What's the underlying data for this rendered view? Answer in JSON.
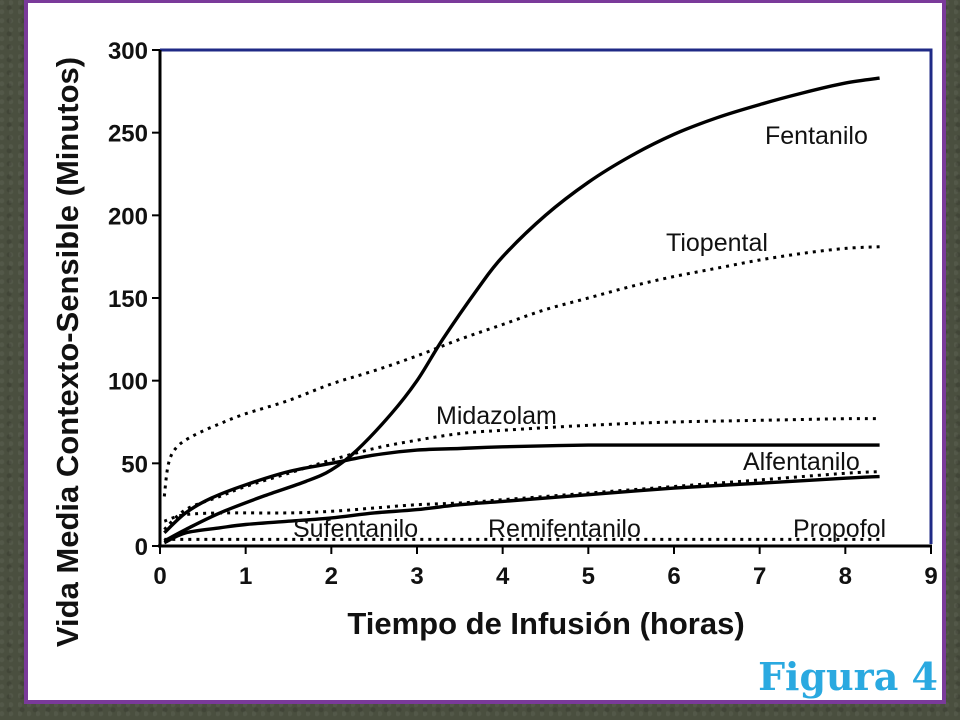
{
  "caption": "Figura 4",
  "chart_data": {
    "type": "line",
    "title": "",
    "xlabel": "Tiempo de Infusión (horas)",
    "ylabel": "Vida Media Contexto-Sensible (Minutos)",
    "xlim": [
      0,
      9
    ],
    "ylim": [
      0,
      300
    ],
    "xticks": [
      0,
      1,
      2,
      3,
      4,
      5,
      6,
      7,
      8,
      9
    ],
    "yticks": [
      0,
      50,
      100,
      150,
      200,
      250,
      300
    ],
    "grid": false,
    "legend": "inline labels",
    "series": [
      {
        "name": "Fentanilo",
        "style": "solid",
        "x": [
          0.05,
          0.3,
          0.7,
          1.2,
          1.7,
          2.0,
          2.3,
          2.7,
          3.0,
          3.3,
          3.7,
          4.0,
          4.5,
          5.0,
          5.5,
          6.0,
          6.5,
          7.0,
          7.5,
          8.0,
          8.4
        ],
        "y": [
          3,
          10,
          20,
          30,
          39,
          46,
          58,
          80,
          100,
          125,
          155,
          175,
          200,
          220,
          236,
          249,
          259,
          267,
          274,
          280,
          283
        ]
      },
      {
        "name": "Tiopental",
        "style": "dotted",
        "x": [
          0.05,
          0.1,
          0.2,
          0.4,
          0.7,
          1.0,
          1.5,
          2.0,
          2.5,
          3.0,
          3.5,
          4.0,
          4.5,
          5.0,
          5.5,
          6.0,
          6.5,
          7.0,
          7.5,
          8.0,
          8.4
        ],
        "y": [
          30,
          50,
          60,
          67,
          74,
          80,
          88,
          98,
          106,
          115,
          125,
          134,
          143,
          150,
          157,
          163,
          168,
          173,
          177,
          180,
          181
        ]
      },
      {
        "name": "Midazolam",
        "style": "dotted",
        "x": [
          0.05,
          0.3,
          0.7,
          1.0,
          1.5,
          2.0,
          2.5,
          3.0,
          3.5,
          4.0,
          5.0,
          6.0,
          7.0,
          8.0,
          8.4
        ],
        "y": [
          10,
          22,
          30,
          36,
          44,
          52,
          59,
          64,
          68,
          70,
          73,
          75,
          76,
          77,
          77
        ]
      },
      {
        "name": "Alfentanilo",
        "style": "solid",
        "x": [
          0.05,
          0.3,
          0.6,
          1.0,
          1.5,
          2.0,
          2.5,
          3.0,
          3.5,
          4.0,
          5.0,
          6.0,
          7.0,
          8.0,
          8.4
        ],
        "y": [
          8,
          20,
          29,
          37,
          45,
          50,
          55,
          58,
          59,
          60,
          61,
          61,
          61,
          61,
          61
        ]
      },
      {
        "name": "Sufentanilo",
        "style": "solid",
        "x": [
          0.05,
          0.3,
          0.7,
          1.0,
          1.5,
          2.0,
          2.5,
          3.0,
          3.5,
          4.0,
          5.0,
          6.0,
          7.0,
          8.0,
          8.4
        ],
        "y": [
          2,
          8,
          11,
          13,
          15,
          17,
          20,
          22,
          25,
          27,
          31,
          35,
          38,
          41,
          42
        ]
      },
      {
        "name": "Remifentanilo",
        "style": "dotted",
        "x": [
          0.05,
          0.5,
          1.0,
          2.0,
          3.0,
          4.0,
          5.0,
          6.0,
          7.0,
          8.0,
          8.4
        ],
        "y": [
          4,
          4,
          4,
          4,
          4,
          4,
          4,
          4,
          4,
          4,
          4
        ]
      },
      {
        "name": "Propofol",
        "style": "dotted",
        "x": [
          0.05,
          0.3,
          0.8,
          1.5,
          2.0,
          2.5,
          3.0,
          3.5,
          4.0,
          5.0,
          6.0,
          7.0,
          8.0,
          8.4
        ],
        "y": [
          15,
          19,
          20,
          20,
          21,
          23,
          25,
          26,
          28,
          32,
          36,
          40,
          44,
          45
        ]
      }
    ]
  }
}
